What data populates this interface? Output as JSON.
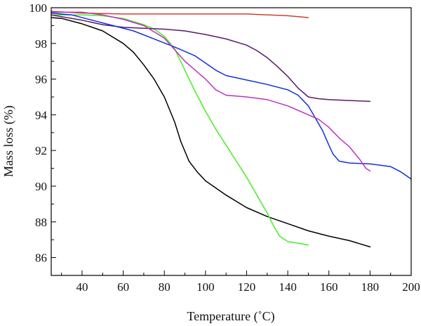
{
  "chart_data": {
    "type": "line",
    "xlabel": "Temperature (˚C)",
    "ylabel": "Mass loss (%)",
    "xlim": [
      25,
      200
    ],
    "ylim": [
      85,
      100
    ],
    "xticks": [
      40,
      60,
      80,
      100,
      120,
      140,
      160,
      180,
      200
    ],
    "yticks": [
      86,
      88,
      90,
      92,
      94,
      96,
      98,
      100
    ],
    "grid": false,
    "legend": "none",
    "series": [
      {
        "color": "#d04030",
        "points": [
          [
            25,
            99.8
          ],
          [
            40,
            99.7
          ],
          [
            60,
            99.65
          ],
          [
            80,
            99.65
          ],
          [
            100,
            99.65
          ],
          [
            120,
            99.65
          ],
          [
            140,
            99.55
          ],
          [
            150,
            99.45
          ]
        ]
      },
      {
        "color": "#000000",
        "points": [
          [
            25,
            99.45
          ],
          [
            30,
            99.4
          ],
          [
            40,
            99.1
          ],
          [
            50,
            98.7
          ],
          [
            60,
            98.0
          ],
          [
            65,
            97.5
          ],
          [
            70,
            96.8
          ],
          [
            75,
            96.0
          ],
          [
            80,
            95.0
          ],
          [
            85,
            93.6
          ],
          [
            88,
            92.5
          ],
          [
            92,
            91.4
          ],
          [
            96,
            90.8
          ],
          [
            100,
            90.3
          ],
          [
            110,
            89.5
          ],
          [
            120,
            88.8
          ],
          [
            130,
            88.3
          ],
          [
            140,
            87.9
          ],
          [
            150,
            87.5
          ],
          [
            160,
            87.2
          ],
          [
            170,
            86.95
          ],
          [
            180,
            86.6
          ]
        ]
      },
      {
        "color": "#44ee22",
        "points": [
          [
            25,
            99.6
          ],
          [
            40,
            99.6
          ],
          [
            50,
            99.55
          ],
          [
            60,
            99.4
          ],
          [
            70,
            99.05
          ],
          [
            75,
            98.8
          ],
          [
            80,
            98.4
          ],
          [
            85,
            97.7
          ],
          [
            90,
            96.5
          ],
          [
            95,
            95.3
          ],
          [
            100,
            94.2
          ],
          [
            105,
            93.2
          ],
          [
            110,
            92.3
          ],
          [
            115,
            91.4
          ],
          [
            120,
            90.5
          ],
          [
            125,
            89.5
          ],
          [
            130,
            88.5
          ],
          [
            133,
            87.8
          ],
          [
            136,
            87.2
          ],
          [
            140,
            86.9
          ],
          [
            145,
            86.8
          ],
          [
            150,
            86.7
          ]
        ]
      },
      {
        "color": "#5a1a6a",
        "points": [
          [
            25,
            99.6
          ],
          [
            40,
            99.3
          ],
          [
            50,
            99.05
          ],
          [
            60,
            98.9
          ],
          [
            70,
            98.85
          ],
          [
            80,
            98.8
          ],
          [
            90,
            98.7
          ],
          [
            100,
            98.5
          ],
          [
            110,
            98.25
          ],
          [
            120,
            97.9
          ],
          [
            125,
            97.6
          ],
          [
            130,
            97.2
          ],
          [
            135,
            96.7
          ],
          [
            140,
            96.15
          ],
          [
            145,
            95.5
          ],
          [
            150,
            95.0
          ],
          [
            155,
            94.9
          ],
          [
            160,
            94.85
          ],
          [
            170,
            94.8
          ],
          [
            180,
            94.75
          ]
        ]
      },
      {
        "color": "#1030e0",
        "points": [
          [
            25,
            99.7
          ],
          [
            35,
            99.6
          ],
          [
            45,
            99.3
          ],
          [
            55,
            99.0
          ],
          [
            65,
            98.7
          ],
          [
            75,
            98.25
          ],
          [
            85,
            97.8
          ],
          [
            95,
            97.3
          ],
          [
            100,
            96.9
          ],
          [
            105,
            96.5
          ],
          [
            110,
            96.2
          ],
          [
            120,
            95.95
          ],
          [
            130,
            95.7
          ],
          [
            140,
            95.4
          ],
          [
            145,
            95.1
          ],
          [
            150,
            94.5
          ],
          [
            153,
            93.9
          ],
          [
            157,
            93.1
          ],
          [
            160,
            92.3
          ],
          [
            162,
            91.8
          ],
          [
            165,
            91.4
          ],
          [
            170,
            91.3
          ],
          [
            180,
            91.25
          ],
          [
            190,
            91.1
          ],
          [
            195,
            90.8
          ],
          [
            200,
            90.4
          ]
        ]
      },
      {
        "color": "#c030c0",
        "points": [
          [
            25,
            99.75
          ],
          [
            40,
            99.75
          ],
          [
            50,
            99.6
          ],
          [
            60,
            99.35
          ],
          [
            70,
            99.0
          ],
          [
            80,
            98.3
          ],
          [
            90,
            97.0
          ],
          [
            100,
            96.0
          ],
          [
            105,
            95.4
          ],
          [
            110,
            95.1
          ],
          [
            120,
            95.0
          ],
          [
            130,
            94.85
          ],
          [
            140,
            94.5
          ],
          [
            150,
            94.0
          ],
          [
            155,
            93.75
          ],
          [
            160,
            93.3
          ],
          [
            165,
            92.7
          ],
          [
            170,
            92.2
          ],
          [
            175,
            91.5
          ],
          [
            178,
            91.0
          ],
          [
            180,
            90.85
          ]
        ]
      }
    ]
  }
}
